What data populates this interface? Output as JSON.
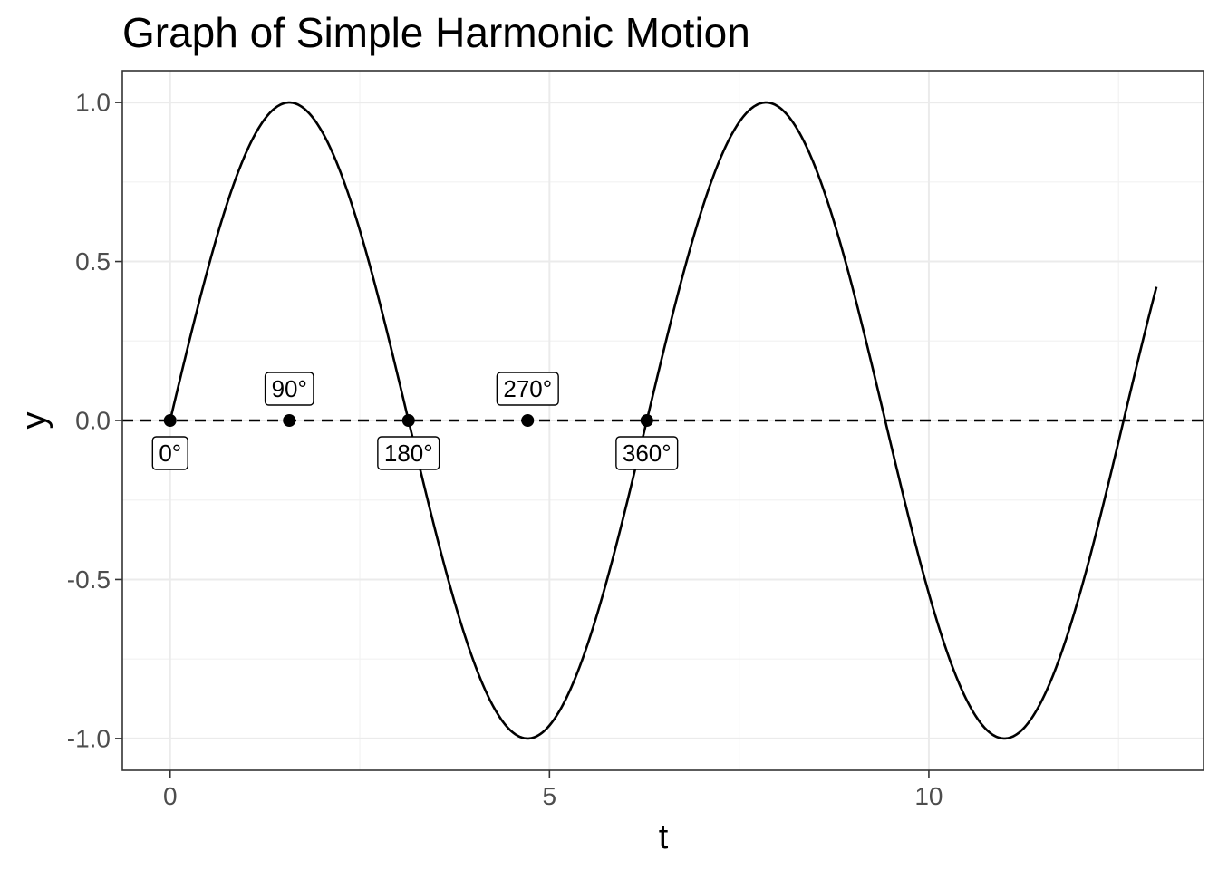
{
  "chart_data": {
    "type": "line",
    "title": "Graph of Simple Harmonic Motion",
    "xlabel": "t",
    "ylabel": "y",
    "xlim": [
      -0.63,
      13.62
    ],
    "ylim": [
      -1.1,
      1.1
    ],
    "x_ticks": [
      0,
      5,
      10
    ],
    "x_tick_labels": [
      "0",
      "5",
      "10"
    ],
    "y_ticks": [
      -1.0,
      -0.5,
      0.0,
      0.5,
      1.0
    ],
    "y_tick_labels": [
      "-1.0",
      "-0.5",
      "0.0",
      "0.5",
      "1.0"
    ],
    "grid": true,
    "curve": {
      "function": "sin",
      "t_start": 0,
      "t_end": 13.0,
      "color": "#000000"
    },
    "reference_line": {
      "y": 0,
      "style": "dashed",
      "color": "#000000"
    },
    "points": [
      {
        "t": 0,
        "y": 0,
        "label": "0°",
        "label_position": "below"
      },
      {
        "t": 1.5708,
        "y": 0,
        "label": "90°",
        "label_position": "above"
      },
      {
        "t": 3.1416,
        "y": 0,
        "label": "180°",
        "label_position": "below"
      },
      {
        "t": 4.7124,
        "y": 0,
        "label": "270°",
        "label_position": "above"
      },
      {
        "t": 6.2832,
        "y": 0,
        "label": "360°",
        "label_position": "below"
      }
    ]
  }
}
